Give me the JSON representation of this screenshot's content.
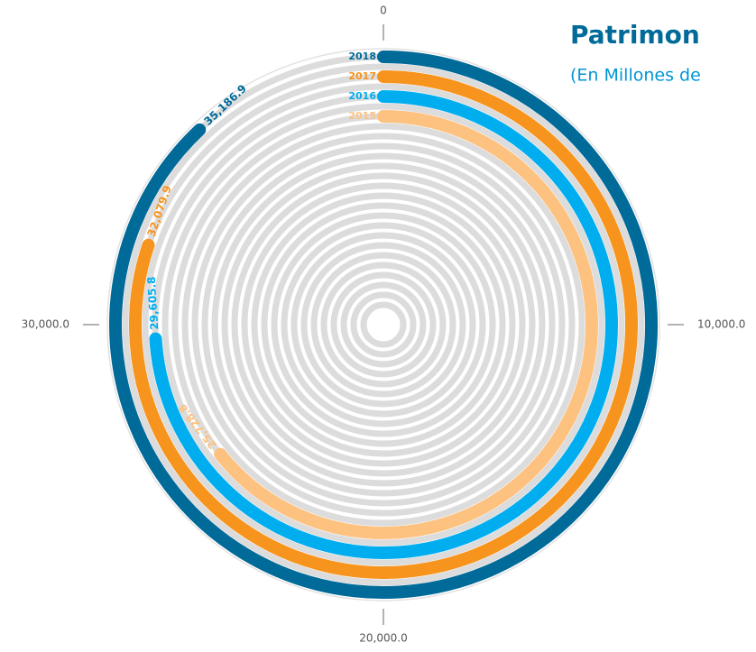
{
  "chart_data": {
    "type": "radial_bar",
    "title": "Patrimon",
    "subtitle": "(En Millones de",
    "categories": [
      "2018",
      "2017",
      "2016",
      "2015"
    ],
    "values": [
      35186.9,
      32079.9,
      29605.8,
      25728.8
    ],
    "value_labels": [
      "35,186.9",
      "32,079.9",
      "29,605.8",
      "25,728.8"
    ],
    "colors": [
      "#006a99",
      "#f7941d",
      "#00aeef",
      "#fdc180"
    ],
    "ylim": [
      0,
      40000
    ],
    "yticks": [
      0,
      {
        "value": 10000,
        "label": "10,000.0"
      },
      {
        "value": 20000,
        "label": "20,000.0"
      },
      {
        "value": 30000,
        "label": "30,000.0"
      }
    ]
  }
}
